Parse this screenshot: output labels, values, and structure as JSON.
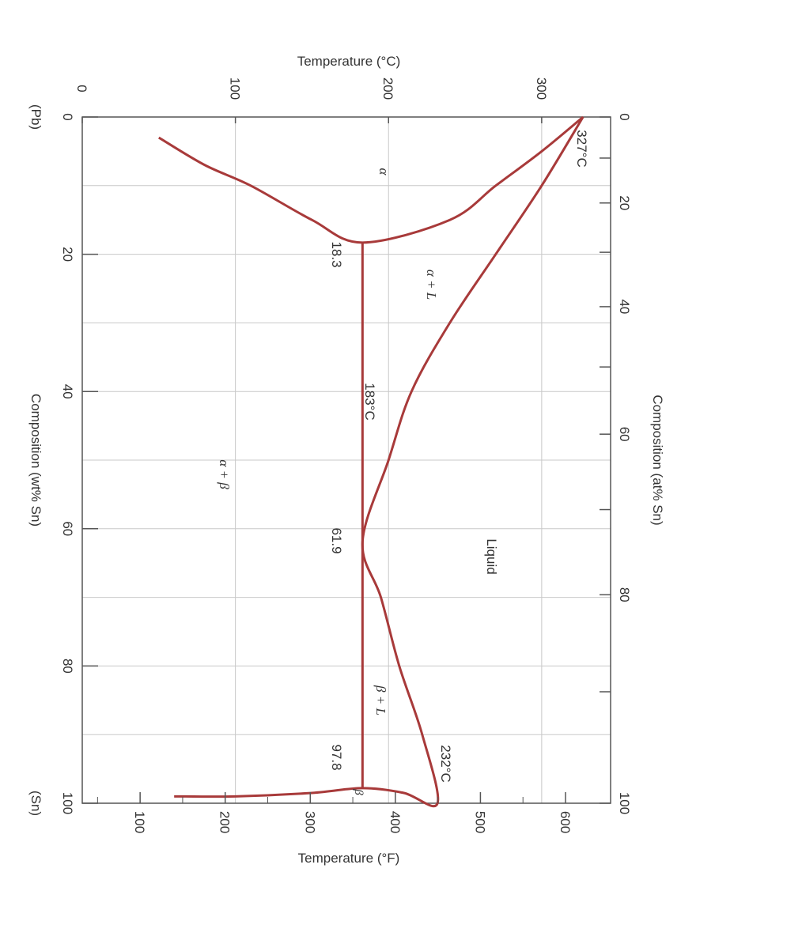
{
  "chart_data": {
    "type": "line",
    "orientation": "rotated-90-cw",
    "title": "",
    "axes": {
      "temperature_c": {
        "label": "Temperature (°C)",
        "ticks": [
          0,
          100,
          200,
          300
        ],
        "range": [
          0,
          345
        ]
      },
      "temperature_f": {
        "label": "Temperature (°F)",
        "ticks": [
          100,
          200,
          300,
          400,
          500,
          600
        ],
        "range": [
          32,
          653
        ]
      },
      "composition_wt": {
        "label": "Composition (wt% Sn)",
        "ticks": [
          0,
          20,
          40,
          60,
          80,
          100
        ],
        "range": [
          0,
          100
        ]
      },
      "composition_at": {
        "label": "Composition (at% Sn)",
        "ticks": [
          0,
          20,
          40,
          60,
          80,
          100
        ]
      },
      "end_labels": {
        "left": "(Pb)",
        "right": "(Sn)"
      }
    },
    "grid": true,
    "series": [
      {
        "points": [
          [
            0,
            327
          ],
          [
            5,
            300
          ],
          [
            10,
            270
          ],
          [
            15,
            240
          ],
          [
            18.3,
            183
          ],
          [
            15,
            150
          ],
          [
            10,
            110
          ],
          [
            7,
            80
          ],
          [
            3,
            50
          ]
        ]
      },
      {
        "points": [
          [
            0,
            327
          ],
          [
            10,
            300
          ],
          [
            20,
            270
          ],
          [
            30,
            240
          ],
          [
            40,
            215
          ],
          [
            50,
            200
          ],
          [
            61.9,
            183
          ],
          [
            70,
            195
          ],
          [
            80,
            207
          ],
          [
            90,
            222
          ],
          [
            100,
            232
          ],
          [
            98.5,
            210
          ],
          [
            97.8,
            183
          ],
          [
            98.5,
            150
          ],
          [
            99,
            100
          ],
          [
            99,
            60
          ]
        ]
      },
      {
        "points": [
          [
            18.3,
            183
          ],
          [
            61.9,
            183
          ],
          [
            97.8,
            183
          ]
        ]
      }
    ],
    "annotations": {
      "t_pb": "327°C",
      "t_eutectic": "183°C",
      "t_sn": "232°C",
      "c_alpha": "18.3",
      "c_eutectic": "61.9",
      "c_beta": "97.8",
      "region_alpha": "α",
      "region_alpha_l": "α + L",
      "region_alpha_beta": "α + β",
      "region_liquid": "Liquid",
      "region_beta_l": "β + L",
      "region_beta": "β"
    },
    "colors": {
      "curve": "#a83a3a",
      "grid": "#c8c8c8",
      "axis": "#555555",
      "text": "#333333"
    }
  }
}
